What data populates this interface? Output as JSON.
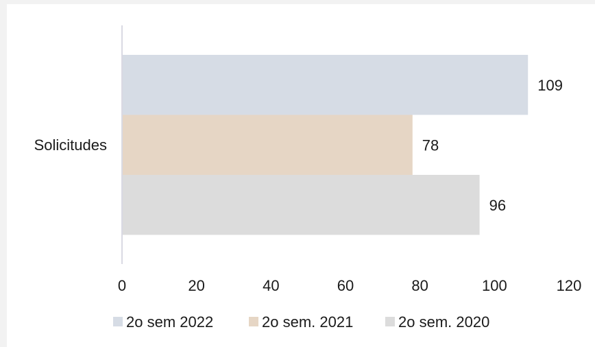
{
  "chart_data": {
    "type": "bar",
    "orientation": "horizontal",
    "categories": [
      "Solicitudes"
    ],
    "series": [
      {
        "name": "2o sem 2022",
        "values": [
          109
        ],
        "color": "#d6dce5"
      },
      {
        "name": "2o sem. 2021",
        "values": [
          78
        ],
        "color": "#e6d6c5"
      },
      {
        "name": "2o sem. 2020",
        "values": [
          96
        ],
        "color": "#dcdcdc"
      }
    ],
    "xlim": [
      0,
      120
    ],
    "xticks": [
      0,
      20,
      40,
      60,
      80,
      100,
      120
    ],
    "grid": false,
    "legend": "bottom",
    "data_labels": true
  }
}
